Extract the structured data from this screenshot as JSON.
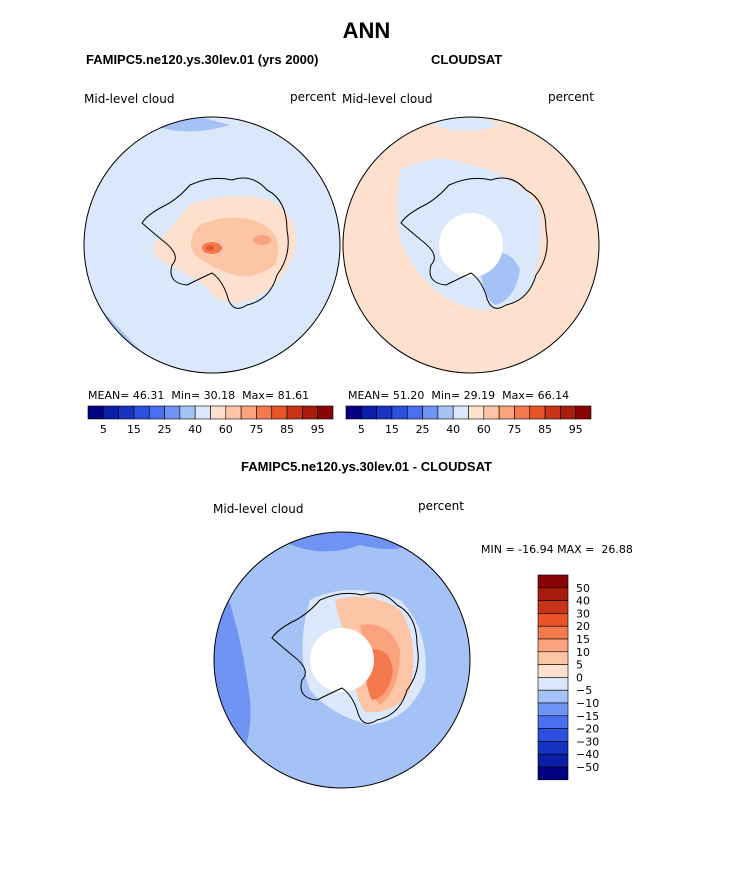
{
  "page": {
    "title": "ANN"
  },
  "panels": [
    {
      "id": "model",
      "header": "FAMIPC5.ne120.ys.30lev.01 (yrs 2000)",
      "left_label": "Mid-level cloud",
      "right_label": "percent",
      "mean_label": "MEAN=",
      "mean": "46.31",
      "min_label": "Min=",
      "min": "30.18",
      "max_label": "Max=",
      "max": "81.61"
    },
    {
      "id": "obs",
      "header": "CLOUDSAT",
      "left_label": "Mid-level cloud",
      "right_label": "percent",
      "mean_label": "MEAN=",
      "mean": "51.20",
      "min_label": "Min=",
      "min": "29.19",
      "max_label": "Max=",
      "max": "66.14"
    }
  ],
  "diff": {
    "header": "FAMIPC5.ne120.ys.30lev.01 - CLOUDSAT",
    "left_label": "Mid-level cloud",
    "right_label": "percent",
    "minmax_text": "MIN = -16.94 MAX =  26.88"
  },
  "chart_data": [
    {
      "type": "heatmap",
      "title": "FAMIPC5.ne120.ys.30lev.01 (yrs 2000)",
      "variable": "Mid-level cloud",
      "units": "percent",
      "projection": "south polar stereographic",
      "stats": {
        "mean": 46.31,
        "min": 30.18,
        "max": 81.61
      },
      "colorbar_tick_labels": [
        "5",
        "15",
        "25",
        "40",
        "60",
        "75",
        "85",
        "95"
      ],
      "levels": [
        5,
        10,
        15,
        20,
        25,
        30,
        40,
        50,
        60,
        70,
        75,
        80,
        85,
        90,
        95
      ],
      "colors": [
        "#000080",
        "#0b1ea8",
        "#1633c4",
        "#2c4fe0",
        "#4a6ff0",
        "#7094f4",
        "#a5c2f7",
        "#dbe8fb",
        "#fde0cd",
        "#fcc5a6",
        "#fba37c",
        "#f47a4e",
        "#e85428",
        "#c73418",
        "#a81c0c",
        "#870505"
      ]
    },
    {
      "type": "heatmap",
      "title": "CLOUDSAT",
      "variable": "Mid-level cloud",
      "units": "percent",
      "projection": "south polar stereographic",
      "stats": {
        "mean": 51.2,
        "min": 29.19,
        "max": 66.14
      },
      "colorbar_tick_labels": [
        "5",
        "15",
        "25",
        "40",
        "60",
        "75",
        "85",
        "95"
      ],
      "levels": [
        5,
        10,
        15,
        20,
        25,
        30,
        40,
        50,
        60,
        70,
        75,
        80,
        85,
        90,
        95
      ],
      "colors": [
        "#000080",
        "#0b1ea8",
        "#1633c4",
        "#2c4fe0",
        "#4a6ff0",
        "#7094f4",
        "#a5c2f7",
        "#dbe8fb",
        "#fde0cd",
        "#fcc5a6",
        "#fba37c",
        "#f47a4e",
        "#e85428",
        "#c73418",
        "#a81c0c",
        "#870505"
      ]
    },
    {
      "type": "heatmap",
      "title": "FAMIPC5.ne120.ys.30lev.01 - CLOUDSAT",
      "variable": "Mid-level cloud",
      "units": "percent",
      "projection": "south polar stereographic",
      "stats": {
        "min": -16.94,
        "max": 26.88
      },
      "colorbar_tick_labels": [
        "50",
        "40",
        "30",
        "20",
        "15",
        "10",
        "5",
        "0",
        "−5",
        "−10",
        "−15",
        "−20",
        "−30",
        "−40",
        "−50"
      ],
      "colors_top_to_bottom": [
        "#870505",
        "#a81c0c",
        "#c73418",
        "#e85428",
        "#f47a4e",
        "#fba37c",
        "#fcc5a6",
        "#fde0cd",
        "#dbe8fb",
        "#a5c2f7",
        "#7094f4",
        "#4a6ff0",
        "#2c4fe0",
        "#1633c4",
        "#0b1ea8",
        "#000080"
      ]
    }
  ]
}
